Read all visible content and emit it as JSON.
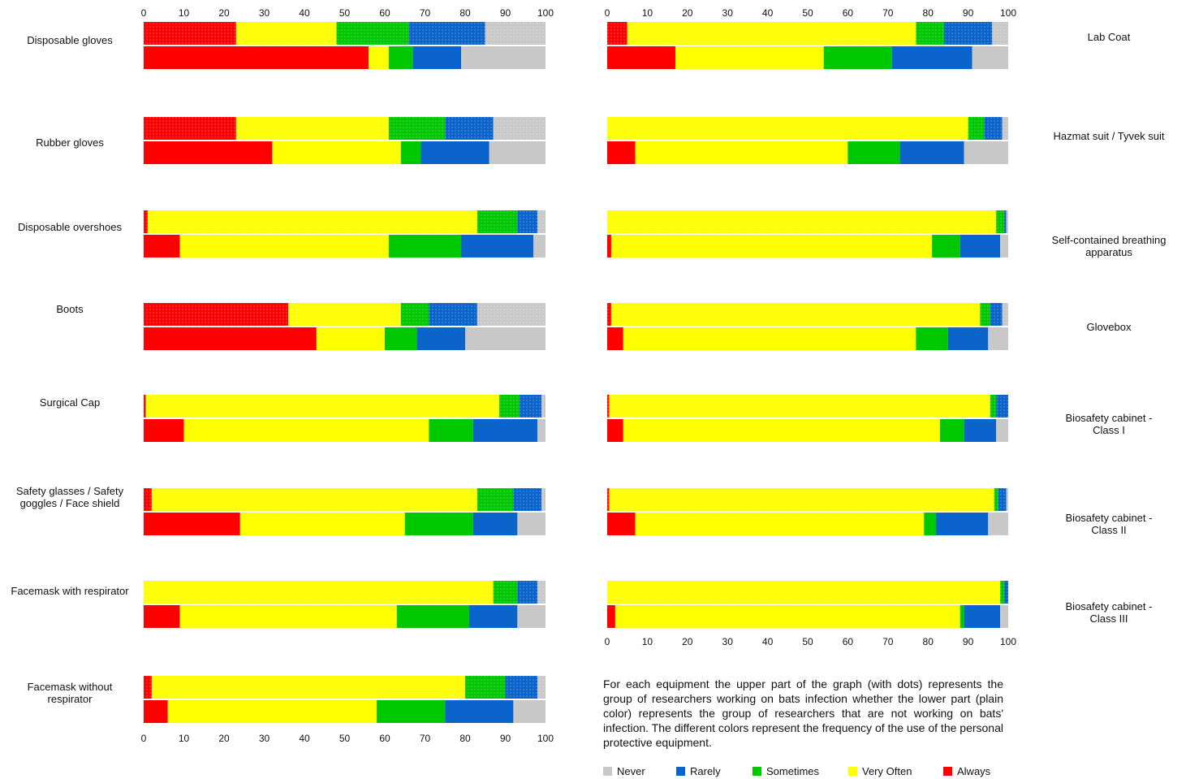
{
  "colors": {
    "Never": "#c8c8c8",
    "Rarely": "#0a64cc",
    "Sometimes": "#00c800",
    "Very Often": "#ffff00",
    "Always": "#ff0000"
  },
  "note": "For each equipment the upper part of the graph (with dots) represents the group of researchers working on bats infection whether the lower part (plain color) represents the group of researchers that are not working on bats' infection. The different colors represent the frequency of the use of the personal protective equipment.",
  "legend": [
    "Never",
    "Rarely",
    "Sometimes",
    "Very Often",
    "Always"
  ],
  "chart_data": [
    {
      "type": "bar",
      "orientation": "horizontal-stacked",
      "xlim": [
        0,
        100
      ],
      "x_ticks": [
        0,
        10,
        20,
        30,
        40,
        50,
        60,
        70,
        80,
        90,
        100
      ],
      "segments": [
        "Always",
        "Very Often",
        "Sometimes",
        "Rarely",
        "Never"
      ],
      "equipment": [
        {
          "name": "Disposable gloves",
          "bats": [
            23,
            25,
            18,
            19,
            15
          ],
          "non_bats": [
            56,
            5,
            6,
            12,
            21
          ]
        },
        {
          "name": "Rubber gloves",
          "bats": [
            23,
            38,
            14,
            12,
            13
          ],
          "non_bats": [
            32,
            32,
            5,
            17,
            14
          ]
        },
        {
          "name": "Disposable overshoes",
          "bats": [
            1,
            82,
            10,
            5,
            2
          ],
          "non_bats": [
            9,
            52,
            18,
            18,
            3
          ]
        },
        {
          "name": "Boots",
          "bats": [
            36,
            28,
            7,
            12,
            17
          ],
          "non_bats": [
            43,
            17,
            8,
            12,
            20
          ]
        },
        {
          "name": "Surgical Cap",
          "bats": [
            0.5,
            88,
            5,
            5.5,
            1
          ],
          "non_bats": [
            10,
            61,
            11,
            16,
            2
          ]
        },
        {
          "name": "Safety glasses / Safety goggles / Face shield",
          "bats": [
            2,
            81,
            9,
            7,
            1
          ],
          "non_bats": [
            24,
            41,
            17,
            11,
            7
          ]
        },
        {
          "name": "Facemask with respirator",
          "bats": [
            0,
            87,
            6,
            5,
            2
          ],
          "non_bats": [
            9,
            54,
            18,
            12,
            7
          ]
        },
        {
          "name": "Facemask without respirator",
          "bats": [
            2,
            78,
            10,
            8,
            2
          ],
          "non_bats": [
            6,
            52,
            17,
            17,
            8
          ]
        }
      ]
    },
    {
      "type": "bar",
      "orientation": "horizontal-stacked",
      "xlim": [
        0,
        100
      ],
      "x_ticks": [
        0,
        10,
        20,
        30,
        40,
        50,
        60,
        70,
        80,
        90,
        100
      ],
      "segments": [
        "Always",
        "Very Often",
        "Sometimes",
        "Rarely",
        "Never"
      ],
      "equipment": [
        {
          "name": "Lab Coat",
          "bats": [
            5,
            72,
            7,
            12,
            4
          ],
          "non_bats": [
            17,
            37,
            17,
            20,
            9
          ]
        },
        {
          "name": "Hazmat suit / Tyvek suit",
          "bats": [
            0,
            90,
            4,
            4.5,
            1.5
          ],
          "non_bats": [
            7,
            53,
            13,
            16,
            11
          ]
        },
        {
          "name": "Self-contained breathing apparatus",
          "bats": [
            0,
            97,
            2,
            0.5,
            0.5
          ],
          "non_bats": [
            1,
            80,
            7,
            10,
            2
          ]
        },
        {
          "name": "Glovebox",
          "bats": [
            1,
            92,
            2.5,
            3,
            1.5
          ],
          "non_bats": [
            4,
            73,
            8,
            10,
            5
          ]
        },
        {
          "name": "Biosafety cabinet - Class I",
          "bats": [
            0.5,
            95,
            1.5,
            3,
            0
          ],
          "non_bats": [
            4,
            79,
            6,
            8,
            3
          ]
        },
        {
          "name": "Biosafety cabinet - Class II",
          "bats": [
            0.5,
            96,
            1,
            2,
            0.5
          ],
          "non_bats": [
            7,
            72,
            3,
            13,
            5
          ]
        },
        {
          "name": "Biosafety cabinet - Class III",
          "bats": [
            0,
            98,
            1,
            1,
            0
          ],
          "non_bats": [
            2,
            86,
            1,
            9,
            2
          ]
        }
      ]
    }
  ]
}
